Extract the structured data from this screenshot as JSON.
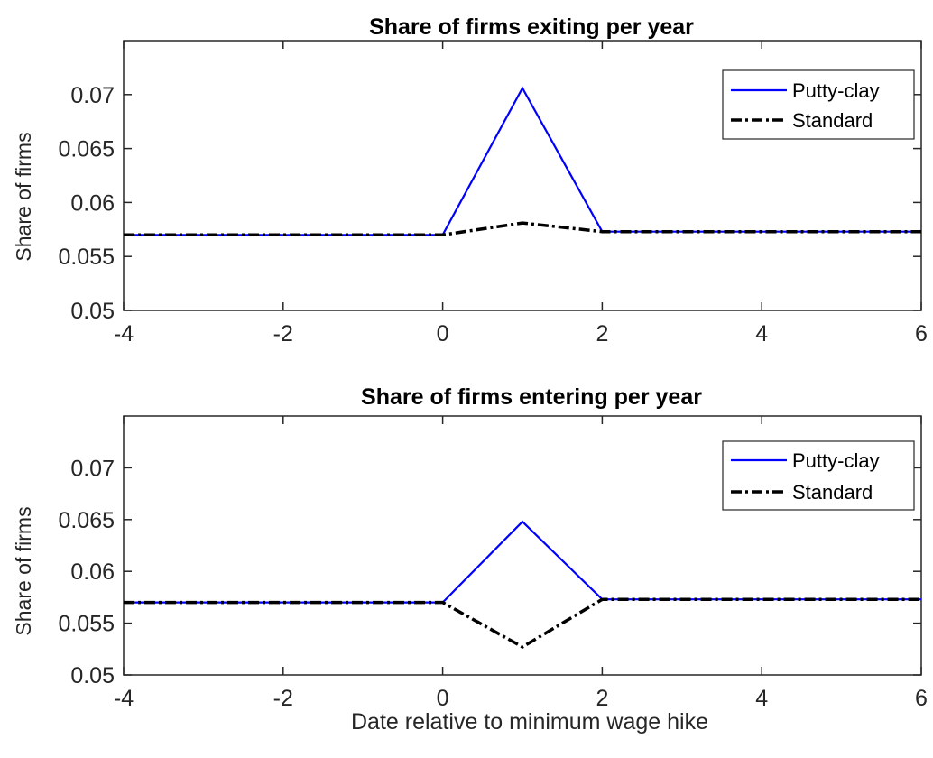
{
  "chart_data": [
    {
      "type": "line",
      "title": "Share of firms exiting per year",
      "xlabel": "",
      "ylabel": "Share of firms",
      "xlim": [
        -4,
        6
      ],
      "ylim": [
        0.05,
        0.075
      ],
      "xticks": [
        -4,
        -2,
        0,
        2,
        4,
        6
      ],
      "xtick_labels": [
        "-4",
        "-2",
        "0",
        "2",
        "4",
        "6"
      ],
      "yticks": [
        0.05,
        0.055,
        0.06,
        0.065,
        0.07
      ],
      "ytick_labels": [
        "0.05",
        "0.055",
        "0.06",
        "0.065",
        "0.07"
      ],
      "legend_position": "top-right",
      "grid": false,
      "series": [
        {
          "name": "Putty-clay",
          "color": "#0000ff",
          "style": "solid",
          "x": [
            -4,
            -3,
            -2,
            -1,
            0,
            1,
            2,
            3,
            4,
            5,
            6
          ],
          "y": [
            0.057,
            0.057,
            0.057,
            0.057,
            0.057,
            0.0706,
            0.0573,
            0.0573,
            0.0573,
            0.0573,
            0.0573
          ]
        },
        {
          "name": "Standard",
          "color": "#000000",
          "style": "dashdot",
          "x": [
            -4,
            -3,
            -2,
            -1,
            0,
            1,
            2,
            3,
            4,
            5,
            6
          ],
          "y": [
            0.057,
            0.057,
            0.057,
            0.057,
            0.057,
            0.0581,
            0.0573,
            0.0573,
            0.0573,
            0.0573,
            0.0573
          ]
        }
      ]
    },
    {
      "type": "line",
      "title": "Share of firms entering per year",
      "xlabel": "Date relative to minimum wage hike",
      "ylabel": "Share of firms",
      "xlim": [
        -4,
        6
      ],
      "ylim": [
        0.05,
        0.075
      ],
      "xticks": [
        -4,
        -2,
        0,
        2,
        4,
        6
      ],
      "xtick_labels": [
        "-4",
        "-2",
        "0",
        "2",
        "4",
        "6"
      ],
      "yticks": [
        0.05,
        0.055,
        0.06,
        0.065,
        0.07
      ],
      "ytick_labels": [
        "0.05",
        "0.055",
        "0.06",
        "0.065",
        "0.07"
      ],
      "legend_position": "top-right",
      "grid": false,
      "series": [
        {
          "name": "Putty-clay",
          "color": "#0000ff",
          "style": "solid",
          "x": [
            -4,
            -3,
            -2,
            -1,
            0,
            1,
            2,
            3,
            4,
            5,
            6
          ],
          "y": [
            0.057,
            0.057,
            0.057,
            0.057,
            0.057,
            0.0648,
            0.0573,
            0.0573,
            0.0573,
            0.0573,
            0.0573
          ]
        },
        {
          "name": "Standard",
          "color": "#000000",
          "style": "dashdot",
          "x": [
            -4,
            -3,
            -2,
            -1,
            0,
            1,
            2,
            3,
            4,
            5,
            6
          ],
          "y": [
            0.057,
            0.057,
            0.057,
            0.057,
            0.057,
            0.0527,
            0.0573,
            0.0573,
            0.0573,
            0.0573,
            0.0573
          ]
        }
      ]
    }
  ]
}
